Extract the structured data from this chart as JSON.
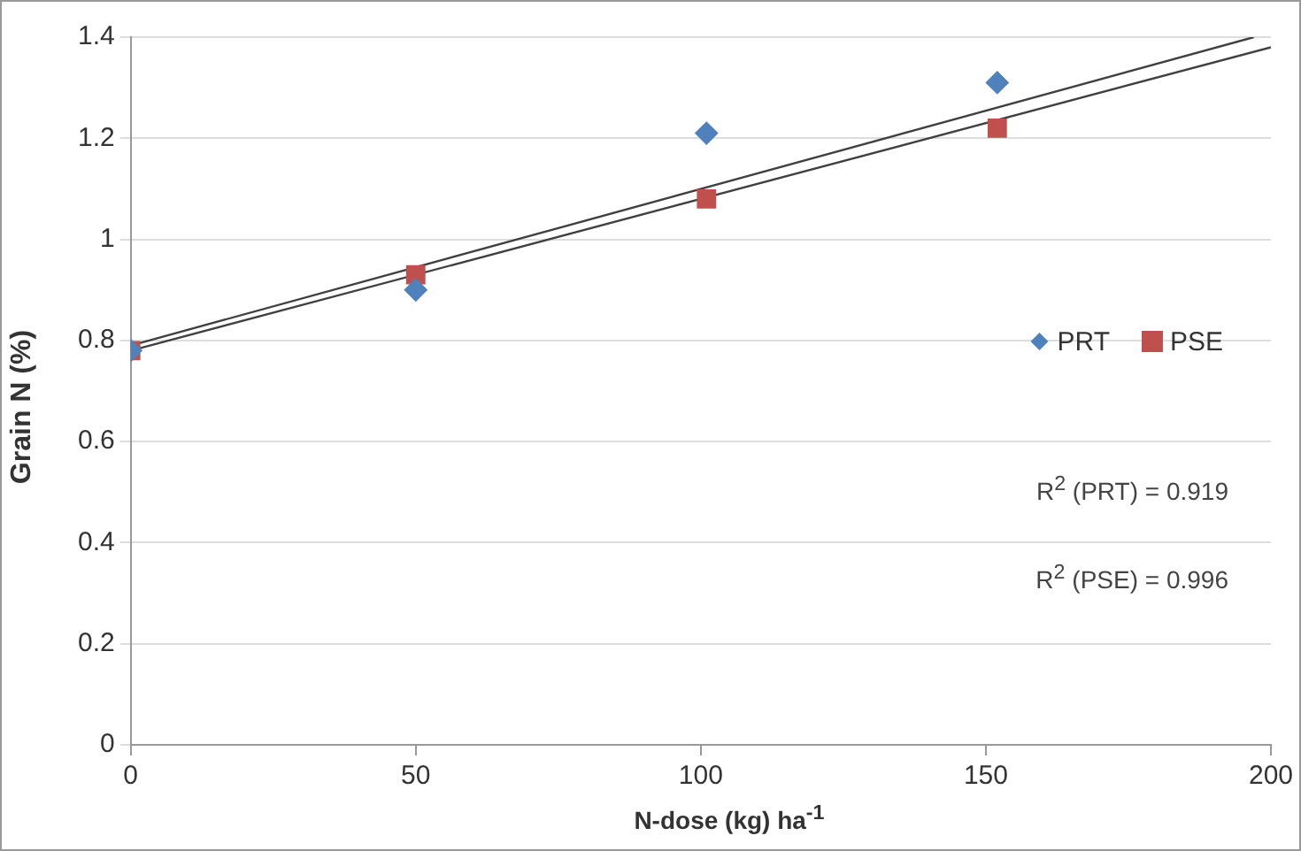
{
  "chart_data": {
    "type": "scatter",
    "xlabel": "N-dose (kg) ha$^{-1}$",
    "ylabel": "Grain N (%)",
    "x": [
      0,
      50,
      101,
      152
    ],
    "series": [
      {
        "name": "PRT",
        "color": "#4f81bd",
        "marker": "diamond",
        "values": [
          0.78,
          0.9,
          1.21,
          1.31
        ]
      },
      {
        "name": "PSE",
        "color": "#c0504d",
        "marker": "square",
        "values": [
          0.78,
          0.93,
          1.08,
          1.22
        ]
      },
      {
        "type": "line",
        "color": "#404040",
        "x": [
          0,
          197
        ],
        "values": [
          0.79,
          1.4
        ]
      },
      {
        "type": "line",
        "color": "#404040",
        "x": [
          0,
          200
        ],
        "values": [
          0.78,
          1.38
        ]
      }
    ],
    "xlim": [
      0,
      200
    ],
    "xticks": [
      0,
      50,
      100,
      150,
      200
    ],
    "ylim": [
      0,
      1.4
    ],
    "yticks": [
      0,
      0.2,
      0.4,
      0.6,
      0.8,
      1,
      1.2,
      1.4
    ],
    "grid": "y",
    "legend": "right",
    "annotations": [
      "R$^{2}$ (PRT) = 0.919",
      "R$^{2}$ (PSE) = 0.996"
    ]
  }
}
